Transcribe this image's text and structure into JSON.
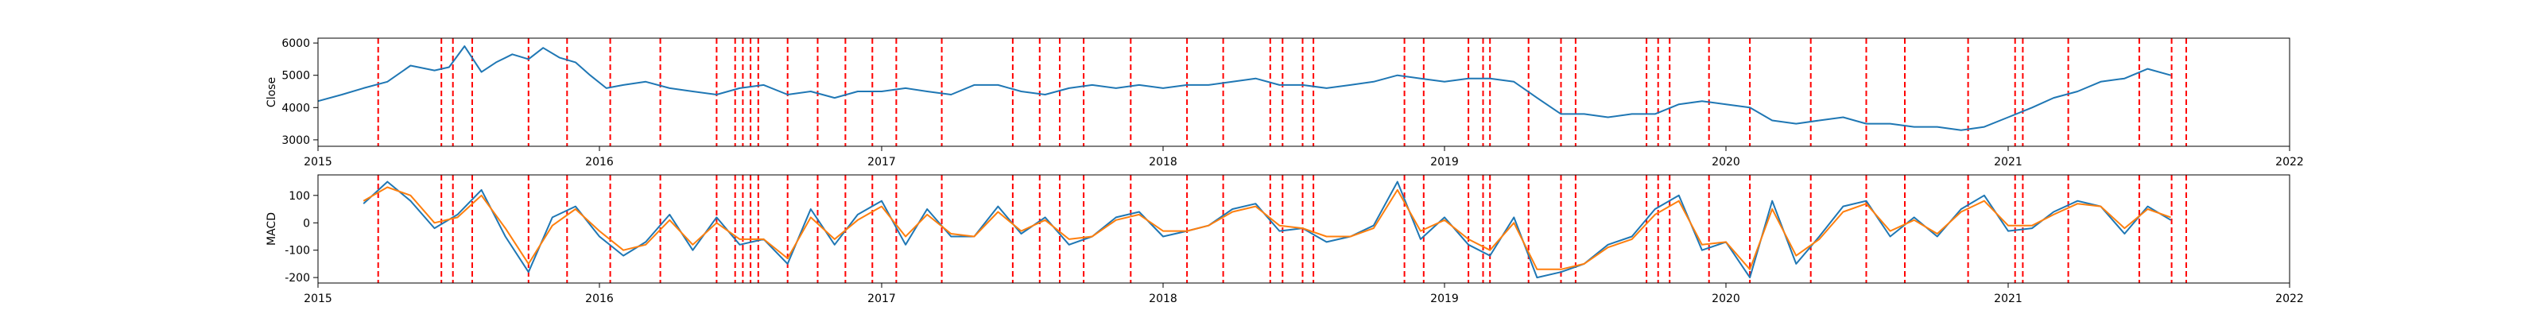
{
  "chart_data": [
    {
      "type": "line",
      "title": "",
      "xlabel": "",
      "ylabel": "Close",
      "x_ticks": [
        "2015",
        "2016",
        "2017",
        "2018",
        "2019",
        "2020",
        "2021",
        "2022"
      ],
      "y_ticks": [
        3000,
        4000,
        5000,
        6000
      ],
      "xlim": [
        "2015-01-01",
        "2022-01-01"
      ],
      "ylim": [
        2800,
        6150
      ],
      "grid": false,
      "series": [
        {
          "color": "#1f77b4",
          "x": [
            "2015-01-01",
            "2015-02-01",
            "2015-03-01",
            "2015-04-01",
            "2015-05-01",
            "2015-06-01",
            "2015-06-20",
            "2015-07-10",
            "2015-08-01",
            "2015-08-20",
            "2015-09-10",
            "2015-10-01",
            "2015-10-20",
            "2015-11-10",
            "2015-12-01",
            "2015-12-20",
            "2016-01-10",
            "2016-02-01",
            "2016-03-01",
            "2016-04-01",
            "2016-05-01",
            "2016-06-01",
            "2016-07-01",
            "2016-08-01",
            "2016-09-01",
            "2016-10-01",
            "2016-11-01",
            "2016-12-01",
            "2017-01-01",
            "2017-02-01",
            "2017-03-01",
            "2017-04-01",
            "2017-05-01",
            "2017-06-01",
            "2017-07-01",
            "2017-08-01",
            "2017-09-01",
            "2017-10-01",
            "2017-11-01",
            "2017-12-01",
            "2018-01-01",
            "2018-02-01",
            "2018-03-01",
            "2018-04-01",
            "2018-05-01",
            "2018-06-01",
            "2018-07-01",
            "2018-08-01",
            "2018-09-01",
            "2018-10-01",
            "2018-11-01",
            "2018-12-01",
            "2019-01-01",
            "2019-02-01",
            "2019-03-01",
            "2019-04-01",
            "2019-05-01",
            "2019-06-01",
            "2019-07-01",
            "2019-08-01",
            "2019-09-01",
            "2019-10-01",
            "2019-11-01",
            "2019-12-01",
            "2020-01-01",
            "2020-02-01",
            "2020-03-01",
            "2020-04-01",
            "2020-05-01",
            "2020-06-01",
            "2020-07-01",
            "2020-08-01",
            "2020-09-01",
            "2020-10-01",
            "2020-11-01",
            "2020-12-01",
            "2021-01-01",
            "2021-02-01",
            "2021-03-01",
            "2021-04-01",
            "2021-05-01",
            "2021-06-01",
            "2021-07-01",
            "2021-07-31"
          ],
          "y": [
            4200,
            4400,
            4600,
            4800,
            5300,
            5150,
            5250,
            5900,
            5100,
            5400,
            5650,
            5500,
            5850,
            5550,
            5400,
            5000,
            4600,
            4700,
            4800,
            4600,
            4500,
            4400,
            4600,
            4700,
            4400,
            4500,
            4300,
            4500,
            4500,
            4600,
            4500,
            4400,
            4700,
            4700,
            4500,
            4400,
            4600,
            4700,
            4600,
            4700,
            4600,
            4700,
            4700,
            4800,
            4900,
            4700,
            4700,
            4600,
            4700,
            4800,
            5000,
            4900,
            4800,
            4900,
            4900,
            4800,
            4300,
            3800,
            3800,
            3700,
            3800,
            3800,
            4100,
            4200,
            4100,
            4000,
            3600,
            3500,
            3600,
            3700,
            3500,
            3500,
            3400,
            3400,
            3300,
            3400,
            3700,
            4000,
            4300,
            4500,
            4800,
            4900,
            5200,
            5000
          ]
        }
      ],
      "signal_dates": [
        "2015-03-20",
        "2015-06-10",
        "2015-06-25",
        "2015-07-20",
        "2015-10-01",
        "2015-11-20",
        "2016-01-15",
        "2016-03-20",
        "2016-06-01",
        "2016-06-25",
        "2016-07-05",
        "2016-07-15",
        "2016-07-25",
        "2016-09-01",
        "2016-10-10",
        "2016-11-15",
        "2016-12-20",
        "2017-01-20",
        "2017-03-20",
        "2017-06-20",
        "2017-07-25",
        "2017-08-20",
        "2017-09-20",
        "2017-11-20",
        "2018-02-01",
        "2018-03-20",
        "2018-05-20",
        "2018-06-05",
        "2018-07-01",
        "2018-07-15",
        "2018-11-10",
        "2018-12-05",
        "2019-02-01",
        "2019-02-20",
        "2019-03-01",
        "2019-04-20",
        "2019-06-01",
        "2019-06-20",
        "2019-09-20",
        "2019-10-05",
        "2019-10-20",
        "2019-12-10",
        "2020-02-01",
        "2020-04-20",
        "2020-07-01",
        "2020-08-20",
        "2020-11-10",
        "2021-01-10",
        "2021-01-20",
        "2021-03-20",
        "2021-06-20",
        "2021-08-01",
        "2021-08-20"
      ],
      "signal_color": "#ff0000"
    },
    {
      "type": "line",
      "title": "",
      "xlabel": "",
      "ylabel": "MACD",
      "x_ticks": [
        "2015",
        "2016",
        "2017",
        "2018",
        "2019",
        "2020",
        "2021",
        "2022"
      ],
      "y_ticks": [
        -200,
        -100,
        0,
        100
      ],
      "xlim": [
        "2015-01-01",
        "2022-01-01"
      ],
      "ylim": [
        -220,
        175
      ],
      "grid": false,
      "series": [
        {
          "color": "#1f77b4",
          "x": [
            "2015-03-01",
            "2015-04-01",
            "2015-05-01",
            "2015-06-01",
            "2015-07-01",
            "2015-08-01",
            "2015-09-01",
            "2015-10-01",
            "2015-11-01",
            "2015-12-01",
            "2016-01-01",
            "2016-02-01",
            "2016-03-01",
            "2016-04-01",
            "2016-05-01",
            "2016-06-01",
            "2016-07-01",
            "2016-08-01",
            "2016-09-01",
            "2016-10-01",
            "2016-11-01",
            "2016-12-01",
            "2017-01-01",
            "2017-02-01",
            "2017-03-01",
            "2017-04-01",
            "2017-05-01",
            "2017-06-01",
            "2017-07-01",
            "2017-08-01",
            "2017-09-01",
            "2017-10-01",
            "2017-11-01",
            "2017-12-01",
            "2018-01-01",
            "2018-02-01",
            "2018-03-01",
            "2018-04-01",
            "2018-05-01",
            "2018-06-01",
            "2018-07-01",
            "2018-08-01",
            "2018-09-01",
            "2018-10-01",
            "2018-11-01",
            "2018-12-01",
            "2019-01-01",
            "2019-02-01",
            "2019-03-01",
            "2019-04-01",
            "2019-05-01",
            "2019-06-01",
            "2019-07-01",
            "2019-08-01",
            "2019-09-01",
            "2019-10-01",
            "2019-11-01",
            "2019-12-01",
            "2020-01-01",
            "2020-02-01",
            "2020-03-01",
            "2020-04-01",
            "2020-05-01",
            "2020-06-01",
            "2020-07-01",
            "2020-08-01",
            "2020-09-01",
            "2020-10-01",
            "2020-11-01",
            "2020-12-01",
            "2021-01-01",
            "2021-02-01",
            "2021-03-01",
            "2021-04-01",
            "2021-05-01",
            "2021-06-01",
            "2021-07-01",
            "2021-07-31"
          ],
          "y": [
            70,
            150,
            80,
            -20,
            30,
            120,
            -50,
            -180,
            20,
            60,
            -50,
            -120,
            -70,
            30,
            -100,
            20,
            -80,
            -60,
            -150,
            50,
            -80,
            30,
            80,
            -80,
            50,
            -50,
            -50,
            60,
            -40,
            20,
            -80,
            -50,
            20,
            40,
            -50,
            -30,
            -10,
            50,
            70,
            -30,
            -20,
            -70,
            -50,
            -10,
            150,
            -60,
            20,
            -80,
            -120,
            20,
            -200,
            -180,
            -150,
            -80,
            -50,
            50,
            100,
            -100,
            -70,
            -200,
            80,
            -150,
            -50,
            60,
            80,
            -50,
            20,
            -50,
            50,
            100,
            -30,
            -20,
            40,
            80,
            60,
            -40,
            60,
            10
          ]
        },
        {
          "color": "#ff7f0e",
          "x": [
            "2015-03-01",
            "2015-04-01",
            "2015-05-01",
            "2015-06-01",
            "2015-07-01",
            "2015-08-01",
            "2015-09-01",
            "2015-10-01",
            "2015-11-01",
            "2015-12-01",
            "2016-01-01",
            "2016-02-01",
            "2016-03-01",
            "2016-04-01",
            "2016-05-01",
            "2016-06-01",
            "2016-07-01",
            "2016-08-01",
            "2016-09-01",
            "2016-10-01",
            "2016-11-01",
            "2016-12-01",
            "2017-01-01",
            "2017-02-01",
            "2017-03-01",
            "2017-04-01",
            "2017-05-01",
            "2017-06-01",
            "2017-07-01",
            "2017-08-01",
            "2017-09-01",
            "2017-10-01",
            "2017-11-01",
            "2017-12-01",
            "2018-01-01",
            "2018-02-01",
            "2018-03-01",
            "2018-04-01",
            "2018-05-01",
            "2018-06-01",
            "2018-07-01",
            "2018-08-01",
            "2018-09-01",
            "2018-10-01",
            "2018-11-01",
            "2018-12-01",
            "2019-01-01",
            "2019-02-01",
            "2019-03-01",
            "2019-04-01",
            "2019-05-01",
            "2019-06-01",
            "2019-07-01",
            "2019-08-01",
            "2019-09-01",
            "2019-10-01",
            "2019-11-01",
            "2019-12-01",
            "2020-01-01",
            "2020-02-01",
            "2020-03-01",
            "2020-04-01",
            "2020-05-01",
            "2020-06-01",
            "2020-07-01",
            "2020-08-01",
            "2020-09-01",
            "2020-10-01",
            "2020-11-01",
            "2020-12-01",
            "2021-01-01",
            "2021-02-01",
            "2021-03-01",
            "2021-04-01",
            "2021-05-01",
            "2021-06-01",
            "2021-07-01",
            "2021-07-31"
          ],
          "y": [
            80,
            130,
            100,
            0,
            20,
            100,
            -20,
            -150,
            -10,
            50,
            -30,
            -100,
            -80,
            10,
            -80,
            0,
            -60,
            -60,
            -130,
            20,
            -60,
            10,
            60,
            -50,
            30,
            -40,
            -50,
            40,
            -30,
            10,
            -60,
            -50,
            10,
            30,
            -30,
            -30,
            -10,
            40,
            60,
            -10,
            -20,
            -50,
            -50,
            -20,
            120,
            -30,
            10,
            -60,
            -100,
            0,
            -170,
            -170,
            -150,
            -90,
            -60,
            30,
            80,
            -80,
            -70,
            -170,
            50,
            -120,
            -60,
            40,
            70,
            -30,
            10,
            -40,
            40,
            80,
            -10,
            -10,
            30,
            70,
            60,
            -20,
            50,
            20
          ]
        }
      ],
      "signal_dates": [
        "2015-03-20",
        "2015-06-10",
        "2015-06-25",
        "2015-07-20",
        "2015-10-01",
        "2015-11-20",
        "2016-01-15",
        "2016-03-20",
        "2016-06-01",
        "2016-06-25",
        "2016-07-05",
        "2016-07-15",
        "2016-07-25",
        "2016-09-01",
        "2016-10-10",
        "2016-11-15",
        "2016-12-20",
        "2017-01-20",
        "2017-03-20",
        "2017-06-20",
        "2017-07-25",
        "2017-08-20",
        "2017-09-20",
        "2017-11-20",
        "2018-02-01",
        "2018-03-20",
        "2018-05-20",
        "2018-06-05",
        "2018-07-01",
        "2018-07-15",
        "2018-11-10",
        "2018-12-05",
        "2019-02-01",
        "2019-02-20",
        "2019-03-01",
        "2019-04-20",
        "2019-06-01",
        "2019-06-20",
        "2019-09-20",
        "2019-10-05",
        "2019-10-20",
        "2019-12-10",
        "2020-02-01",
        "2020-04-20",
        "2020-07-01",
        "2020-08-20",
        "2020-11-10",
        "2021-01-10",
        "2021-01-20",
        "2021-03-20",
        "2021-06-20",
        "2021-08-01",
        "2021-08-20"
      ],
      "signal_color": "#ff0000"
    }
  ]
}
